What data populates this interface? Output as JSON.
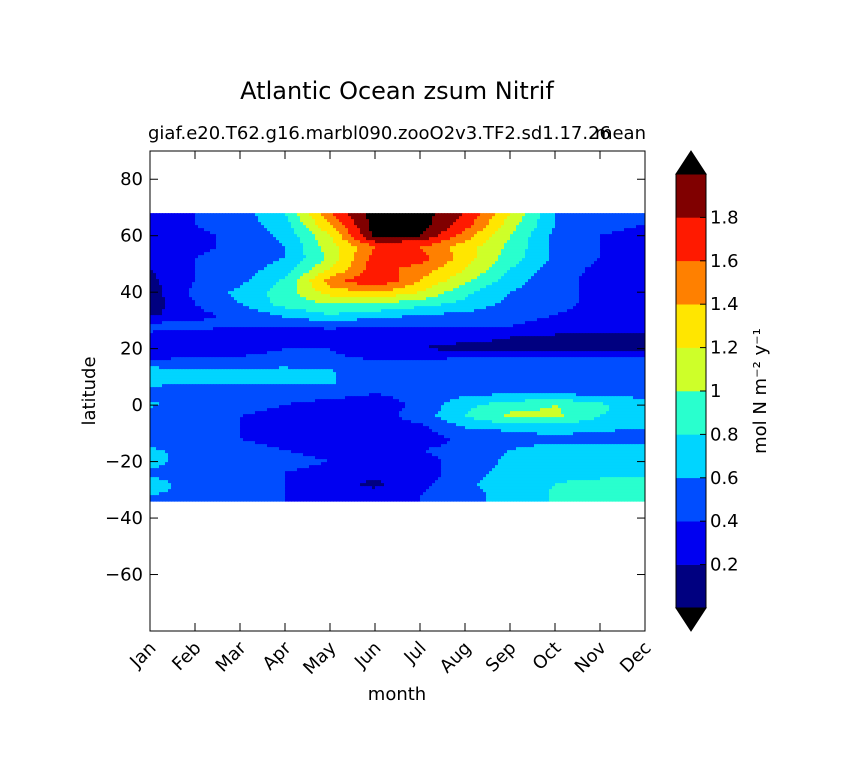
{
  "chart_data": {
    "type": "heatmap",
    "title": "Atlantic Ocean zsum Nitrif",
    "subtitle_left": "giaf.e20.T62.g16.marbl090.zooO2v3.TF2.sd1.17.26",
    "subtitle_right": "mean",
    "xlabel": "month",
    "ylabel": "latitude",
    "x_ticks": [
      "Jan",
      "Feb",
      "Mar",
      "Apr",
      "May",
      "Jun",
      "Jul",
      "Aug",
      "Sep",
      "Oct",
      "Nov",
      "Dec"
    ],
    "y_ticks": [
      "80",
      "60",
      "40",
      "20",
      "0",
      "−20",
      "−40",
      "−60"
    ],
    "ylim": [
      -80,
      90
    ],
    "data_lat_range": [
      -34,
      68
    ],
    "colorbar": {
      "label": "mol N m⁻² y⁻¹",
      "tick_labels": [
        "0.2",
        "0.4",
        "0.6",
        "0.8",
        "1",
        "1.2",
        "1.4",
        "1.6",
        "1.8"
      ],
      "levels": [
        0,
        0.2,
        0.4,
        0.6,
        0.8,
        1.0,
        1.2,
        1.4,
        1.6,
        1.8,
        2.0
      ],
      "colors": [
        "#000080",
        "#0000f1",
        "#004dff",
        "#00d5ff",
        "#29ffce",
        "#ceff29",
        "#ffe600",
        "#ff8000",
        "#ff1a00",
        "#800000"
      ],
      "under_color": "#000000",
      "over_color": "#000000",
      "extend": "both"
    },
    "values_months": [
      1,
      2,
      3,
      4,
      5,
      6,
      7,
      8,
      9,
      10,
      11,
      12
    ],
    "values_lat": [
      68,
      64,
      60,
      56,
      52,
      48,
      44,
      40,
      36,
      32,
      28,
      24,
      20,
      16,
      12,
      8,
      4,
      0,
      -4,
      -8,
      -12,
      -16,
      -20,
      -24,
      -28,
      -32
    ],
    "values": [
      [
        0.35,
        0.4,
        0.5,
        0.8,
        1.6,
        2.1,
        2.1,
        1.8,
        1.2,
        0.6,
        0.45,
        0.4
      ],
      [
        0.35,
        0.4,
        0.5,
        0.7,
        1.4,
        2.1,
        2.1,
        1.7,
        1.1,
        0.6,
        0.45,
        0.4
      ],
      [
        0.3,
        0.35,
        0.45,
        0.65,
        1.2,
        2.05,
        2.0,
        1.5,
        1.0,
        0.55,
        0.4,
        0.35
      ],
      [
        0.3,
        0.35,
        0.45,
        0.6,
        1.1,
        1.6,
        1.6,
        1.3,
        0.95,
        0.55,
        0.4,
        0.35
      ],
      [
        0.3,
        0.4,
        0.5,
        0.6,
        1.05,
        1.7,
        1.7,
        1.3,
        0.9,
        0.55,
        0.4,
        0.3
      ],
      [
        0.2,
        0.4,
        0.5,
        0.7,
        1.2,
        1.7,
        1.5,
        1.2,
        0.8,
        0.5,
        0.35,
        0.3
      ],
      [
        0.15,
        0.4,
        0.55,
        0.85,
        1.5,
        1.8,
        1.4,
        1.05,
        0.7,
        0.45,
        0.35,
        0.25
      ],
      [
        0.1,
        0.45,
        0.65,
        0.9,
        1.3,
        1.4,
        1.2,
        0.85,
        0.6,
        0.45,
        0.35,
        0.3
      ],
      [
        0.1,
        0.4,
        0.6,
        0.9,
        1.0,
        1.0,
        0.9,
        0.75,
        0.55,
        0.45,
        0.35,
        0.3
      ],
      [
        0.15,
        0.35,
        0.45,
        0.65,
        0.8,
        0.7,
        0.6,
        0.55,
        0.45,
        0.4,
        0.35,
        0.35
      ],
      [
        0.5,
        0.45,
        0.4,
        0.4,
        0.45,
        0.4,
        0.4,
        0.4,
        0.4,
        0.35,
        0.3,
        0.25
      ],
      [
        0.3,
        0.3,
        0.3,
        0.25,
        0.25,
        0.25,
        0.25,
        0.25,
        0.2,
        0.15,
        0.15,
        0.15
      ],
      [
        0.25,
        0.2,
        0.3,
        0.4,
        0.4,
        0.25,
        0.2,
        0.15,
        0.15,
        0.15,
        0.15,
        0.15
      ],
      [
        0.4,
        0.45,
        0.45,
        0.5,
        0.45,
        0.4,
        0.4,
        0.45,
        0.45,
        0.45,
        0.45,
        0.45
      ],
      [
        0.7,
        0.65,
        0.65,
        0.65,
        0.62,
        0.45,
        0.4,
        0.4,
        0.4,
        0.4,
        0.4,
        0.4
      ],
      [
        0.65,
        0.62,
        0.65,
        0.62,
        0.62,
        0.45,
        0.4,
        0.4,
        0.4,
        0.4,
        0.4,
        0.4
      ],
      [
        0.5,
        0.45,
        0.45,
        0.45,
        0.45,
        0.4,
        0.45,
        0.55,
        0.6,
        0.6,
        0.55,
        0.55
      ],
      [
        0.65,
        0.45,
        0.45,
        0.4,
        0.35,
        0.3,
        0.45,
        0.75,
        0.9,
        1.0,
        0.85,
        0.65
      ],
      [
        0.4,
        0.4,
        0.4,
        0.35,
        0.25,
        0.3,
        0.5,
        0.8,
        1.05,
        1.05,
        0.8,
        0.65
      ],
      [
        0.4,
        0.4,
        0.4,
        0.3,
        0.2,
        0.2,
        0.35,
        0.6,
        0.65,
        0.7,
        0.65,
        0.6
      ],
      [
        0.45,
        0.45,
        0.4,
        0.35,
        0.25,
        0.25,
        0.3,
        0.45,
        0.5,
        0.55,
        0.5,
        0.5
      ],
      [
        0.65,
        0.5,
        0.45,
        0.4,
        0.35,
        0.35,
        0.4,
        0.45,
        0.6,
        0.7,
        0.7,
        0.7
      ],
      [
        0.7,
        0.45,
        0.45,
        0.45,
        0.4,
        0.3,
        0.35,
        0.45,
        0.65,
        0.72,
        0.72,
        0.72
      ],
      [
        0.55,
        0.45,
        0.45,
        0.4,
        0.35,
        0.25,
        0.3,
        0.5,
        0.7,
        0.75,
        0.75,
        0.75
      ],
      [
        0.7,
        0.5,
        0.45,
        0.4,
        0.3,
        0.15,
        0.35,
        0.55,
        0.75,
        0.8,
        0.85,
        0.9
      ],
      [
        0.6,
        0.55,
        0.45,
        0.4,
        0.35,
        0.3,
        0.4,
        0.5,
        0.7,
        0.82,
        0.9,
        0.95
      ]
    ]
  }
}
